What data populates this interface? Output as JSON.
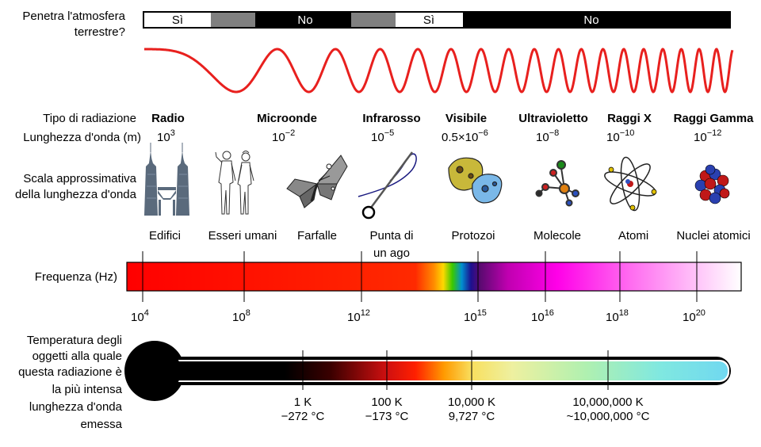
{
  "atmosphere": {
    "label_line1": "Penetra l'atmosfera",
    "label_line2": "terrestre?",
    "segments": [
      {
        "text": "Sì",
        "state": "yes"
      },
      {
        "text": "",
        "state": "partial"
      },
      {
        "text": "No",
        "state": "no"
      },
      {
        "text": "",
        "state": "partial"
      },
      {
        "text": "Sì",
        "state": "yes"
      },
      {
        "text": "No",
        "state": "no"
      }
    ]
  },
  "rows": {
    "type_label": "Tipo di radiazione",
    "wavelength_label": "Lunghezza d'onda (m)",
    "scale_label_line1": "Scala approssimativa",
    "scale_label_line2": "della lunghezza d'onda",
    "frequency_label": "Frequenza (Hz)",
    "temperature_label_lines": [
      "Temperatura degli",
      "oggetti alla quale",
      "questa radiazione è",
      "la più intensa",
      "lunghezza d'onda",
      "emessa"
    ]
  },
  "radiation_types": [
    {
      "name": "Radio",
      "wl_base": "10",
      "wl_exp": "3"
    },
    {
      "name": "Microonde",
      "wl_base": "10",
      "wl_exp": "−2"
    },
    {
      "name": "Infrarosso",
      "wl_base": "10",
      "wl_exp": "−5"
    },
    {
      "name": "Visibile",
      "wl_base": "0.5×10",
      "wl_exp": "−6"
    },
    {
      "name": "Ultravioletto",
      "wl_base": "10",
      "wl_exp": "−8"
    },
    {
      "name": "Raggi X",
      "wl_base": "10",
      "wl_exp": "−10"
    },
    {
      "name": "Raggi Gamma",
      "wl_base": "10",
      "wl_exp": "−12"
    }
  ],
  "scale_objects": [
    {
      "label": "Edifici",
      "icon": "buildings-icon"
    },
    {
      "label": "Esseri umani",
      "icon": "humans-icon"
    },
    {
      "label": "Farfalle",
      "icon": "butterfly-icon"
    },
    {
      "label_line1": "Punta di",
      "label_line2": "un ago",
      "icon": "needle-icon"
    },
    {
      "label": "Protozoi",
      "icon": "protozoa-icon"
    },
    {
      "label": "Molecole",
      "icon": "molecule-icon"
    },
    {
      "label": "Atomi",
      "icon": "atom-icon"
    },
    {
      "label": "Nuclei atomici",
      "icon": "nucleus-icon"
    }
  ],
  "frequency_ticks": [
    {
      "base": "10",
      "exp": "4"
    },
    {
      "base": "10",
      "exp": "8"
    },
    {
      "base": "10",
      "exp": "12"
    },
    {
      "base": "10",
      "exp": "15"
    },
    {
      "base": "10",
      "exp": "16"
    },
    {
      "base": "10",
      "exp": "18"
    },
    {
      "base": "10",
      "exp": "20"
    }
  ],
  "temperature_ticks": [
    {
      "kelvin": "1 K",
      "celsius": "−272 °C"
    },
    {
      "kelvin": "100 K",
      "celsius": "−173 °C"
    },
    {
      "kelvin": "10,000 K",
      "celsius": "9,727 °C"
    },
    {
      "kelvin": "10,000,000 K",
      "celsius": "~10,000,000 °C"
    }
  ],
  "colors": {
    "wave": "#e8201e",
    "bar_black": "#000000",
    "bar_partial": "#808080"
  }
}
